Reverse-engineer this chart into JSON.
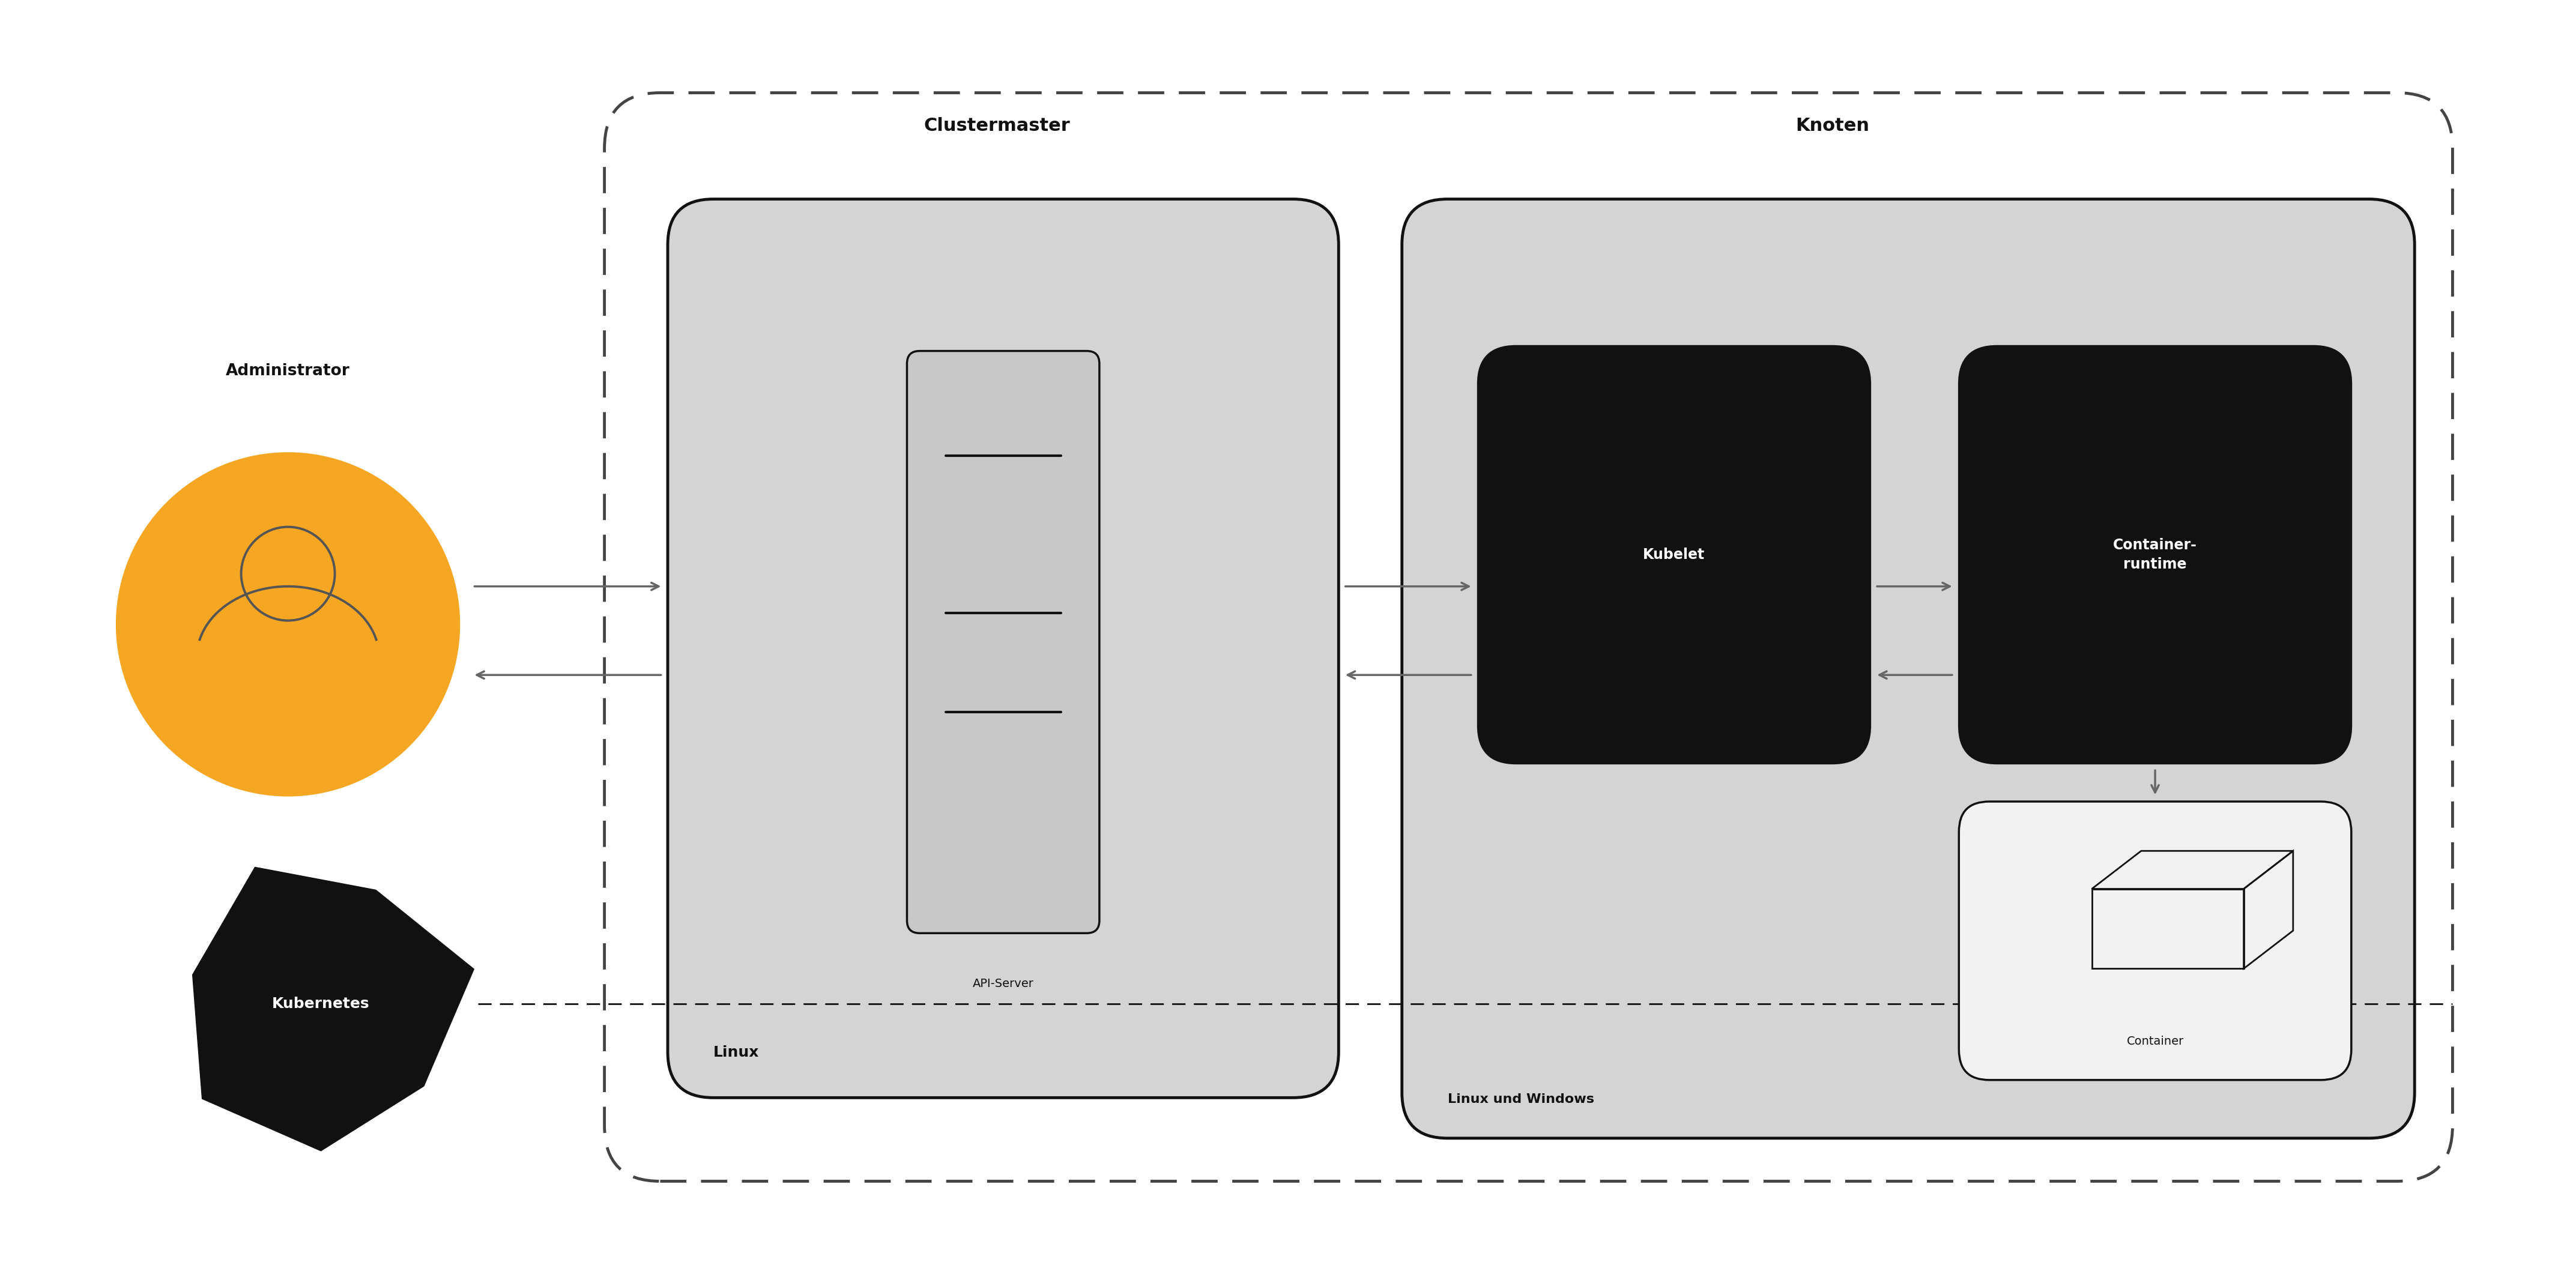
{
  "bg_color": "#ffffff",
  "fig_w": 42.9,
  "fig_h": 21.22,
  "admin_circle_color": "#F5A623",
  "admin_label": "Administrator",
  "cluster_label": "Clustermaster",
  "master_label": "Linux",
  "worker_label": "Linux und Windows",
  "knoten_label": "Knoten",
  "kubelet_label": "Kubelet",
  "container_runtime_label": "Container-\nruntime",
  "container_label": "Container",
  "kubernetes_label": "Kubernetes",
  "grey_color": "#d4d4d4",
  "dark_color": "#111111",
  "arrow_color": "#666666",
  "outer_dash_color": "#444444"
}
